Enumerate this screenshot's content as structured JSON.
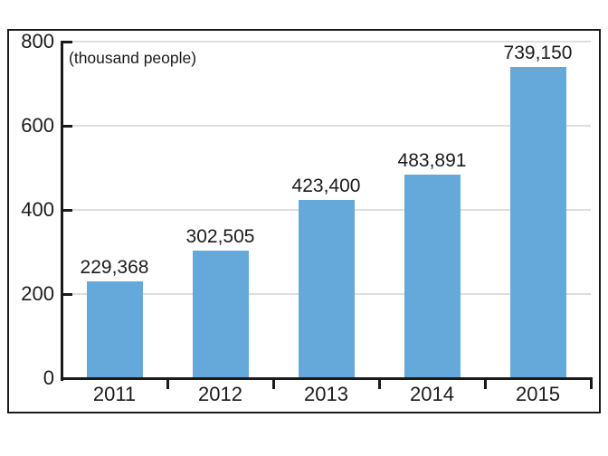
{
  "chart_data": {
    "type": "bar",
    "title": "",
    "unit_label": "(thousand people)",
    "categories": [
      "2011",
      "2012",
      "2013",
      "2014",
      "2015"
    ],
    "values": [
      229368,
      302505,
      423400,
      483891,
      739150
    ],
    "value_labels": [
      "229,368",
      "302,505",
      "423,400",
      "483,891",
      "739,150"
    ],
    "y_axis": {
      "min": 0,
      "max": 800,
      "tick_interval": 200,
      "tick_labels": [
        "0",
        "200",
        "400",
        "600",
        "800"
      ],
      "unit": "thousand people",
      "value_divisor": 1000
    },
    "grid": "horizontal gridlines at each y tick",
    "legend": "none",
    "bar_color": "#64A9DA"
  },
  "colors": {
    "bar": "#64A9DA",
    "grid_line": "#DEDEDE",
    "axis": "#1A1A1A",
    "frame_border": "#1A1A1A",
    "background": "#FFFFFF",
    "text": "#1B1B1B"
  }
}
